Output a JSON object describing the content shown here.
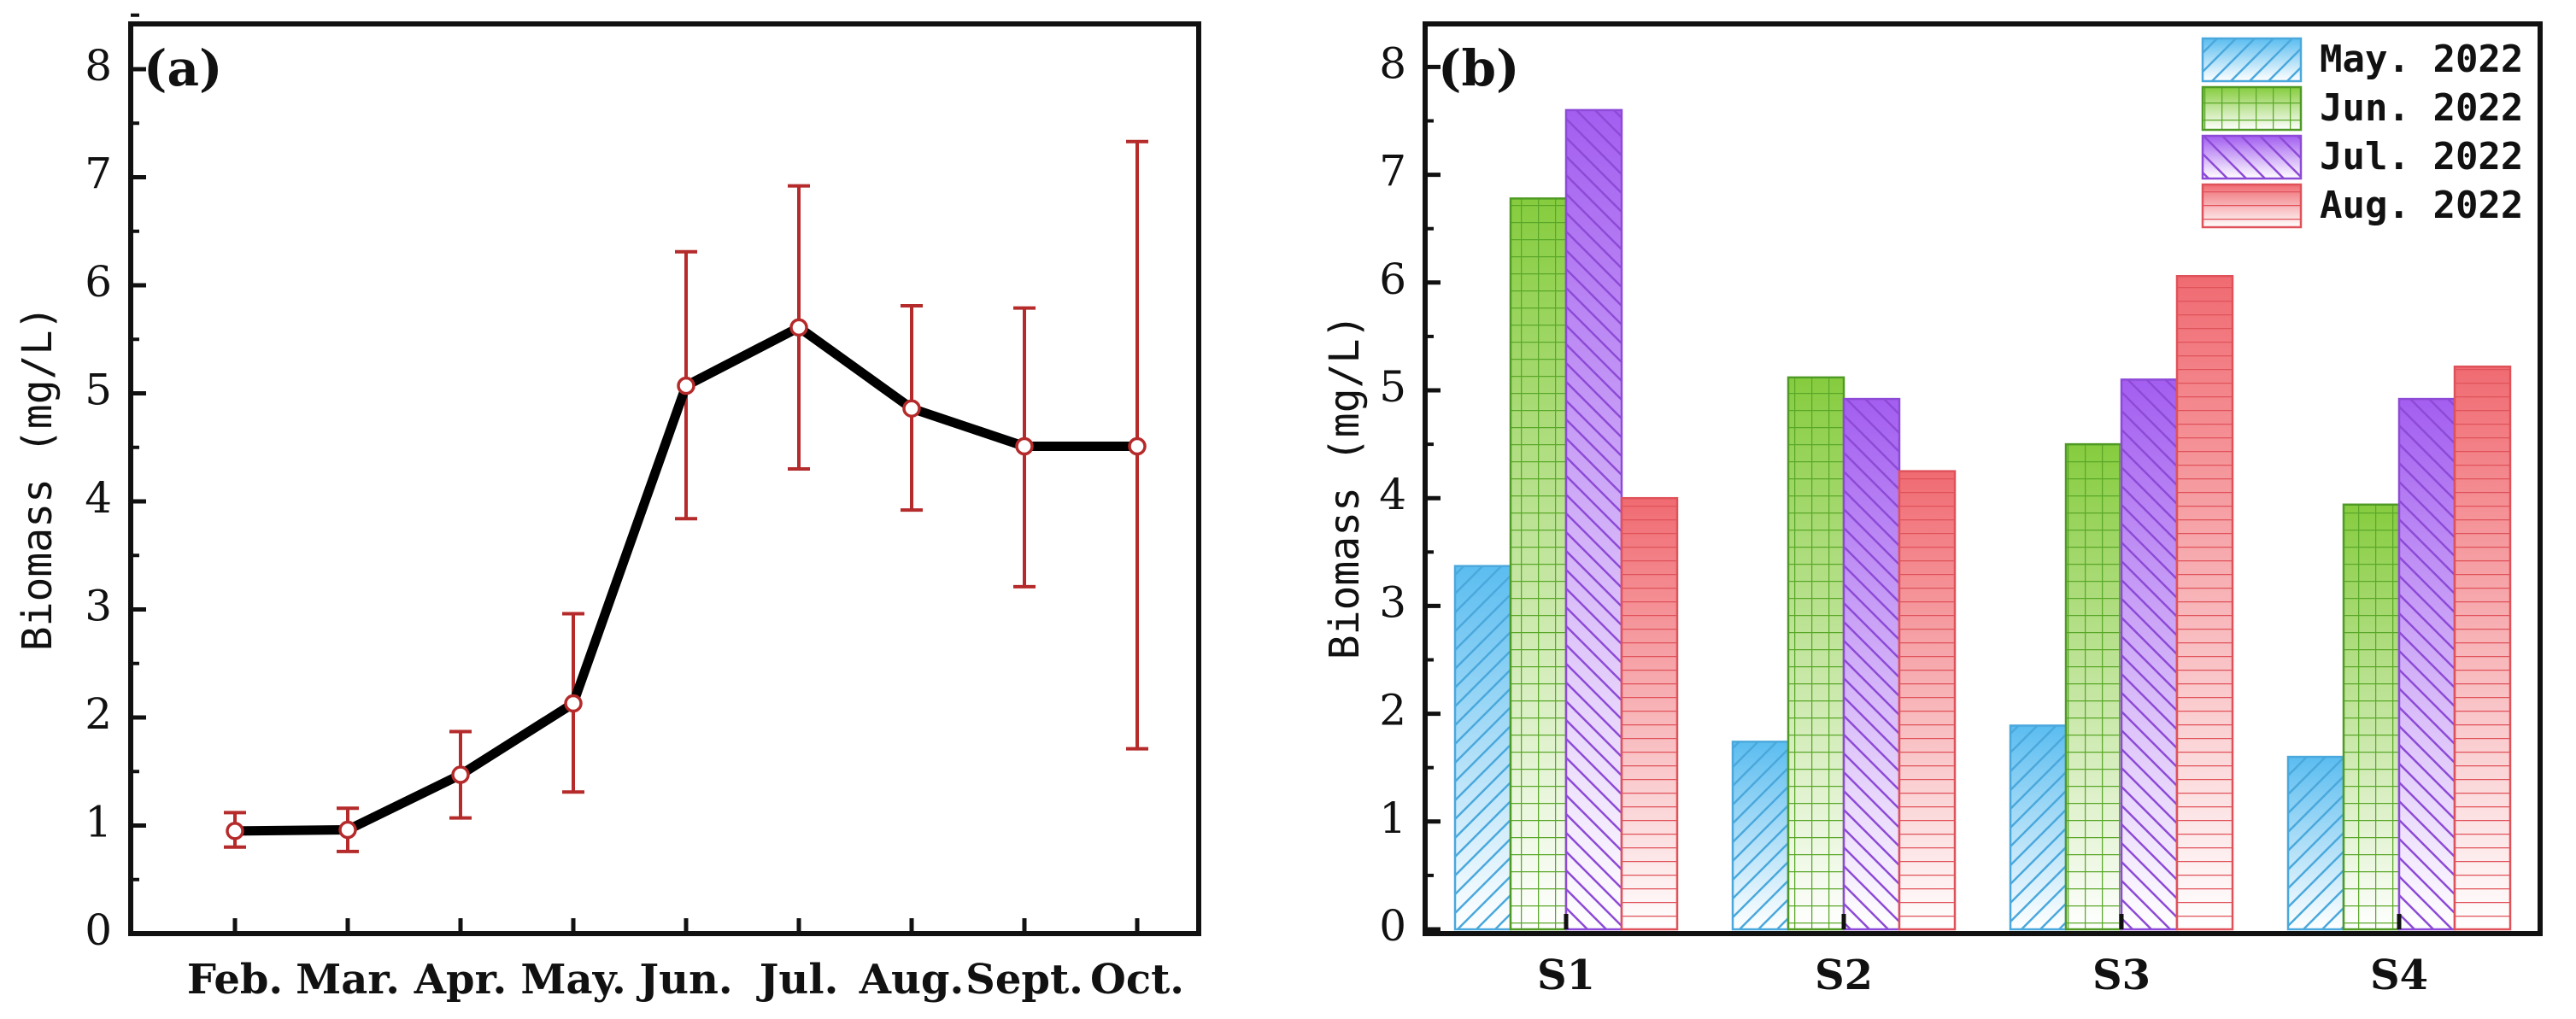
{
  "chart_data": [
    {
      "panel_label": "(a)",
      "type": "line",
      "ylabel": "Biomass (mg/L)",
      "ylim": [
        0,
        8
      ],
      "yticks": [
        "0",
        "1",
        "2",
        "3",
        "4",
        "5",
        "6",
        "7",
        "8"
      ],
      "categories": [
        "Feb.",
        "Mar.",
        "Apr.",
        "May.",
        "Jun.",
        "Jul.",
        "Aug.",
        "Sept.",
        "Oct."
      ],
      "values": [
        0.95,
        0.96,
        1.47,
        2.13,
        5.07,
        5.61,
        4.86,
        4.51,
        4.51
      ],
      "error_low": [
        0.8,
        0.76,
        1.07,
        1.31,
        3.84,
        4.3,
        3.92,
        3.21,
        1.71
      ],
      "error_high": [
        1.12,
        1.16,
        1.87,
        2.96,
        6.31,
        6.92,
        5.81,
        5.79,
        7.33
      ],
      "colors": {
        "line": "#000000",
        "error": "#b52a2a",
        "marker_edge": "#b52a2a",
        "marker_fill": "#ffffff"
      }
    },
    {
      "panel_label": "(b)",
      "type": "bar",
      "ylabel": "Biomass (mg/L)",
      "ylim": [
        0,
        8.4
      ],
      "yticks": [
        "0",
        "1",
        "2",
        "3",
        "4",
        "5",
        "6",
        "7",
        "8"
      ],
      "categories": [
        "S1",
        "S2",
        "S3",
        "S4"
      ],
      "series": [
        {
          "name": "May. 2022",
          "values": [
            3.37,
            1.74,
            1.89,
            1.6
          ],
          "color": "#6cc6f2",
          "pattern": "diag-right"
        },
        {
          "name": "Jun. 2022",
          "values": [
            6.78,
            5.12,
            4.5,
            3.94
          ],
          "color": "#8fd14f",
          "pattern": "grid"
        },
        {
          "name": "Jul. 2022",
          "values": [
            7.6,
            4.92,
            5.1,
            4.92
          ],
          "color": "#b070f0",
          "pattern": "diag-left"
        },
        {
          "name": "Aug. 2022",
          "values": [
            4.0,
            4.25,
            6.06,
            5.22
          ],
          "color": "#f07a80",
          "pattern": "horizontal"
        }
      ],
      "legend_position": "top-right"
    }
  ]
}
